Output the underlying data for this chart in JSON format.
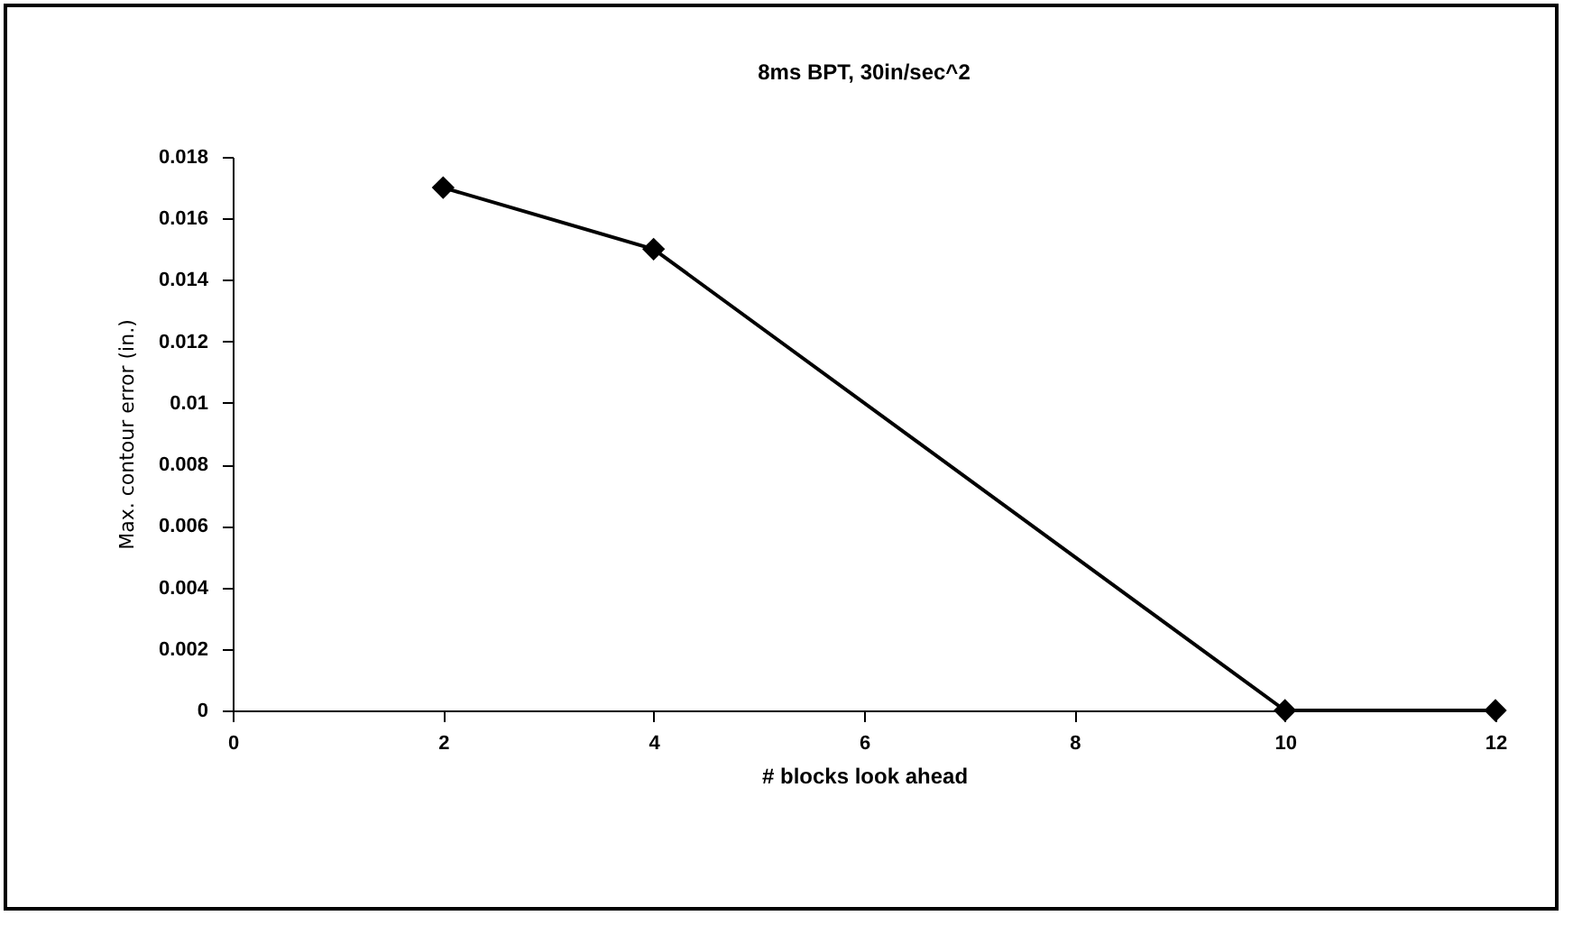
{
  "chart_data": {
    "type": "line",
    "title": "8ms BPT,  30in/sec^2",
    "xlabel": "# blocks look ahead",
    "ylabel": "Max. contour error (in.)",
    "x": [
      2,
      4,
      10,
      12
    ],
    "series": [
      {
        "color": "#000000",
        "values": [
          0.017,
          0.015,
          0,
          0
        ]
      }
    ],
    "xlim": [
      0,
      12
    ],
    "xticks": [
      0,
      2,
      4,
      6,
      8,
      10,
      12
    ],
    "ylim": [
      0,
      0.018
    ],
    "yticks": [
      0,
      0.002,
      0.004,
      0.006,
      0.008,
      0.01,
      0.012,
      0.014,
      0.016,
      0.018
    ],
    "marker": "diamond",
    "line_style": "solid",
    "grid": false,
    "legend": false
  }
}
